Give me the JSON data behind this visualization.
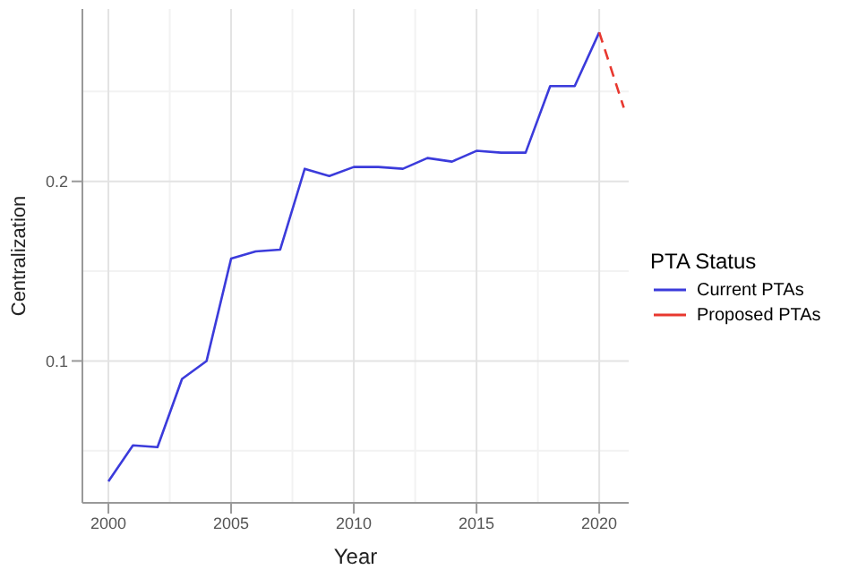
{
  "chart_data": {
    "type": "line",
    "xlabel": "Year",
    "ylabel": "Centralization",
    "legend_title": "PTA Status",
    "legend": "right",
    "grid": true,
    "line_style": "solid",
    "marker": "none",
    "xlim": [
      1998.94,
      2021.2
    ],
    "xticks": [
      2000,
      2005,
      2010,
      2015,
      2020
    ],
    "ylim": [
      0.021,
      0.296
    ],
    "yticks": [
      0.1,
      0.2
    ],
    "series": [
      {
        "name": "Current PTAs",
        "color": "#3b3bdb",
        "x": [
          2000,
          2001,
          2002,
          2003,
          2004,
          2005,
          2006,
          2007,
          2008,
          2009,
          2010,
          2011,
          2012,
          2013,
          2014,
          2015,
          2016,
          2017,
          2018,
          2019,
          2020
        ],
        "values": [
          0.033,
          0.053,
          0.052,
          0.09,
          0.1,
          0.157,
          0.161,
          0.162,
          0.207,
          0.203,
          0.208,
          0.208,
          0.207,
          0.213,
          0.211,
          0.217,
          0.216,
          0.216,
          0.253,
          0.253,
          0.283
        ]
      },
      {
        "name": "Proposed PTAs",
        "color": "#e8382f",
        "line_style": "dashed",
        "x": [
          2020,
          2021
        ],
        "values": [
          0.283,
          0.241
        ]
      }
    ]
  }
}
